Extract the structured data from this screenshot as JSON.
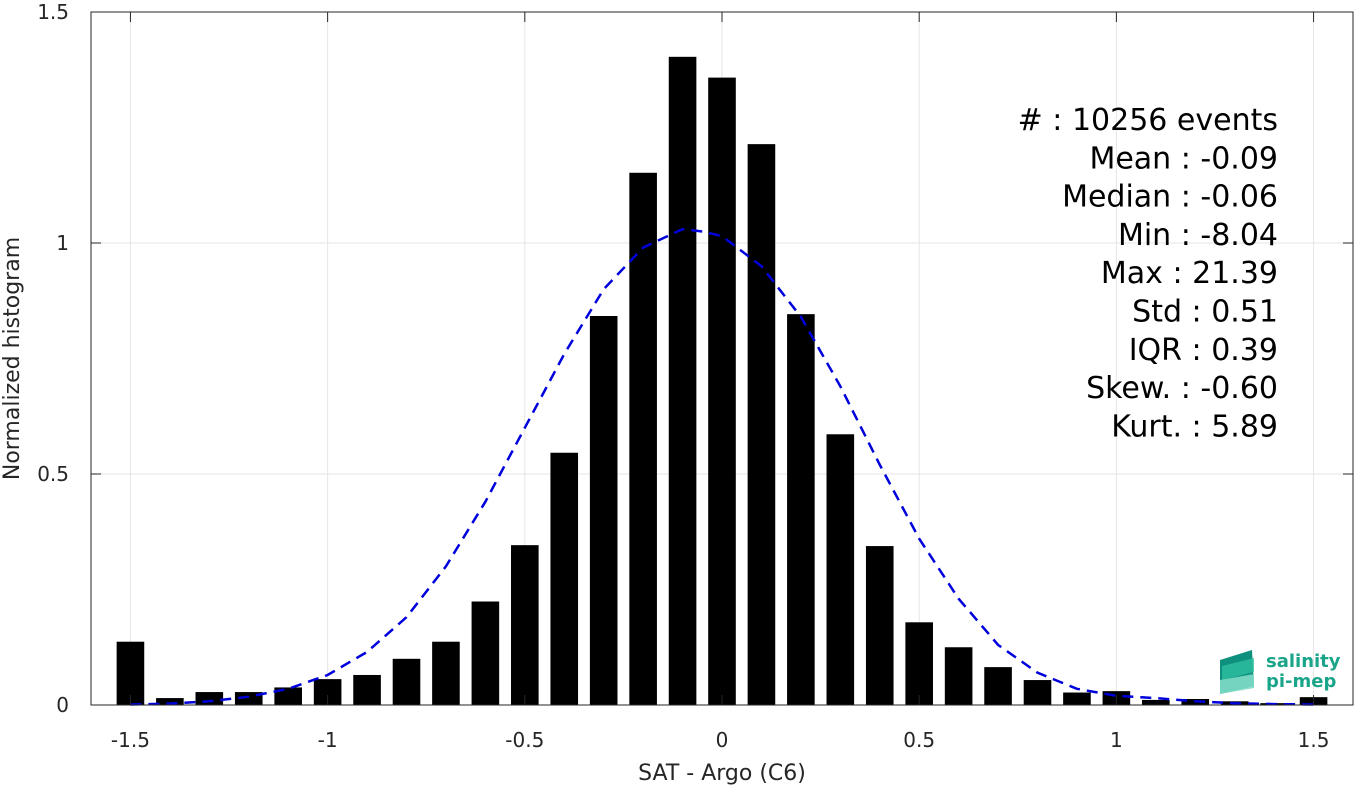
{
  "chart_data": {
    "type": "bar",
    "title": "",
    "xlabel": "SAT - Argo (C6)",
    "ylabel": "Normalized histogram",
    "xlim": [
      -1.6,
      1.6
    ],
    "ylim": [
      0,
      1.5
    ],
    "xticks": [
      -1.5,
      -1,
      -0.5,
      0,
      0.5,
      1,
      1.5
    ],
    "xtick_labels": [
      "-1.5",
      "-1",
      "-0.5",
      "0",
      "0.5",
      "1",
      "1.5"
    ],
    "yticks": [
      0,
      0.5,
      1,
      1.5
    ],
    "ytick_labels": [
      "0",
      "0.5",
      "1",
      "1.5"
    ],
    "grid": true,
    "bar_color": "#000000",
    "fit_color": "#0000dd",
    "bins": [
      -1.5,
      -1.4,
      -1.3,
      -1.2,
      -1.1,
      -1.0,
      -0.9,
      -0.8,
      -0.7,
      -0.6,
      -0.5,
      -0.4,
      -0.3,
      -0.2,
      -0.1,
      0.0,
      0.1,
      0.2,
      0.3,
      0.4,
      0.5,
      0.6,
      0.7,
      0.8,
      0.9,
      1.0,
      1.1,
      1.2,
      1.3,
      1.4,
      1.5
    ],
    "values": [
      0.137,
      0.015,
      0.028,
      0.028,
      0.038,
      0.056,
      0.065,
      0.1,
      0.137,
      0.224,
      0.346,
      0.546,
      0.842,
      1.152,
      1.403,
      1.358,
      1.214,
      0.846,
      0.586,
      0.344,
      0.179,
      0.125,
      0.082,
      0.054,
      0.027,
      0.03,
      0.011,
      0.013,
      0.008,
      0.004,
      0.017
    ],
    "fit_curve": {
      "style": "dashed",
      "x": [
        -1.5,
        -1.4,
        -1.3,
        -1.2,
        -1.1,
        -1.0,
        -0.9,
        -0.8,
        -0.7,
        -0.6,
        -0.5,
        -0.4,
        -0.3,
        -0.2,
        -0.1,
        -0.05,
        0.0,
        0.1,
        0.2,
        0.3,
        0.4,
        0.5,
        0.6,
        0.7,
        0.8,
        0.9,
        1.0,
        1.1,
        1.2,
        1.3,
        1.4,
        1.5
      ],
      "y": [
        0.001,
        0.003,
        0.008,
        0.018,
        0.035,
        0.065,
        0.115,
        0.19,
        0.3,
        0.44,
        0.6,
        0.76,
        0.9,
        0.99,
        1.03,
        1.025,
        1.015,
        0.95,
        0.84,
        0.69,
        0.52,
        0.36,
        0.23,
        0.13,
        0.07,
        0.035,
        0.02,
        0.015,
        0.008,
        0.004,
        0.002,
        0.001
      ]
    },
    "stats": [
      "#  : 10256 events",
      "Mean : -0.09",
      "Median : -0.06",
      "Min : -8.04",
      "Max : 21.39",
      "Std : 0.51",
      "IQR : 0.39",
      "Skew. : -0.60",
      "Kurt. : 5.89"
    ]
  },
  "logo": {
    "line1": "salinity",
    "line2": "pi-mep",
    "color": "#1aa58a"
  }
}
